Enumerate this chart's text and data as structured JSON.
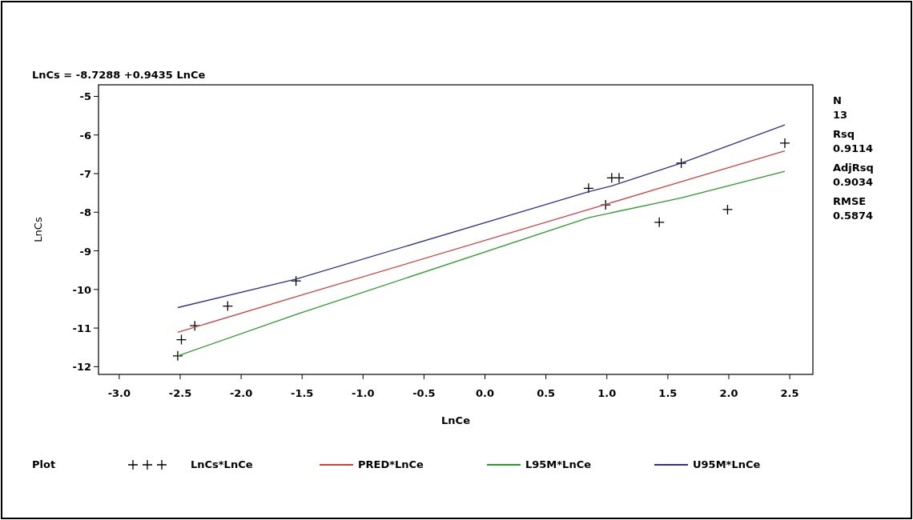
{
  "chart_data": {
    "type": "scatter",
    "xlabel": "LnCe",
    "ylabel": "LnCs",
    "legend_title": "Plot",
    "legend": "bottom",
    "grid": false,
    "xlim": [
      -3.17,
      2.69
    ],
    "ylim": [
      -12.2,
      -4.7
    ],
    "xticks": [
      {
        "value": -3,
        "label": "-3.0"
      },
      {
        "value": -2.5,
        "label": "-2.5"
      },
      {
        "value": -2,
        "label": "-2.0"
      },
      {
        "value": -1.5,
        "label": "-1.5"
      },
      {
        "value": -1,
        "label": "-1.0"
      },
      {
        "value": -0.5,
        "label": "-0.5"
      },
      {
        "value": 0,
        "label": "0.0"
      },
      {
        "value": 0.5,
        "label": "0.5"
      },
      {
        "value": 1,
        "label": "1.0"
      },
      {
        "value": 1.5,
        "label": "1.5"
      },
      {
        "value": 2,
        "label": "2.0"
      },
      {
        "value": 2.5,
        "label": "2.5"
      }
    ],
    "yticks": [
      -12,
      -11,
      -10,
      -9,
      -8,
      -7,
      -6,
      -5
    ],
    "annotations": [
      "LnCs = -8.7288 +0.9435 LnCe",
      "N",
      "13",
      "Rsq",
      "0.9114",
      "AdjRsq",
      "0.9034",
      "RMSE",
      "0.5874"
    ],
    "series": [
      {
        "name": "LnCs*LnCe",
        "marker": "cross",
        "color": "#000000",
        "x": [
          -2.52,
          -2.49,
          -2.38,
          -2.11,
          -1.55,
          0.85,
          0.99,
          1.04,
          1.1,
          1.43,
          1.61,
          1.99,
          2.46
        ],
        "values": [
          -11.72,
          -11.3,
          -10.94,
          -10.43,
          -9.78,
          -7.38,
          -7.81,
          -7.11,
          -7.11,
          -8.26,
          -6.73,
          -7.93,
          -6.21
        ]
      },
      {
        "name": "PRED*LnCe",
        "type": "line",
        "marker": "none",
        "color": "#d04040",
        "x": [
          -2.52,
          -1.55,
          0.85,
          1.61,
          2.46
        ],
        "values": [
          -11.11,
          -10.19,
          -7.93,
          -7.21,
          -6.41
        ]
      },
      {
        "name": "L95M*LnCe",
        "type": "line",
        "marker": "none",
        "color": "#2a9a2a",
        "x": [
          -2.52,
          -1.55,
          0.85,
          1.61,
          2.46
        ],
        "values": [
          -11.72,
          -10.65,
          -8.14,
          -7.63,
          -6.94
        ]
      },
      {
        "name": "U95M*LnCe",
        "type": "line",
        "marker": "none",
        "color": "#303090",
        "x": [
          -2.52,
          -1.55,
          0.85,
          1.04,
          1.61,
          2.46
        ],
        "values": [
          -10.47,
          -9.73,
          -7.47,
          -7.32,
          -6.73,
          -5.74
        ]
      }
    ]
  }
}
